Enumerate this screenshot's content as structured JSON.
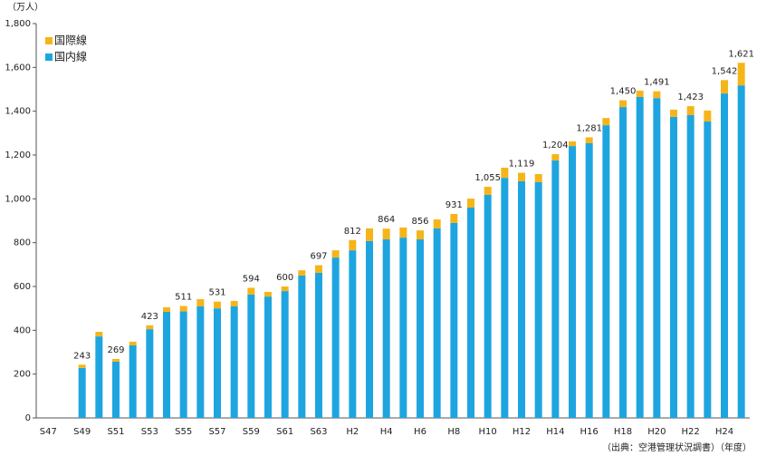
{
  "chart_data": {
    "type": "stacked_bar",
    "y_unit": "（万人）",
    "source": "（出典：空港管理状況調書）（年度）",
    "categories": [
      "S47",
      null,
      "S49",
      null,
      "S51",
      null,
      "S53",
      null,
      "S55",
      null,
      "S57",
      null,
      "S59",
      null,
      "S61",
      null,
      "S63",
      null,
      "H2",
      null,
      "H4",
      null,
      "H6",
      null,
      "H8",
      null,
      "H10",
      null,
      "H12",
      null,
      "H14",
      null,
      "H16",
      null,
      "H18",
      null,
      "H20",
      null,
      "H22",
      null,
      "H24",
      null
    ],
    "series": [
      {
        "name": "国内線",
        "color": "#1ea5e0",
        "values": [
          null,
          null,
          228,
          372,
          257,
          331,
          405,
          484,
          486,
          509,
          500,
          509,
          563,
          554,
          579,
          650,
          662,
          732,
          765,
          807,
          815,
          823,
          815,
          865,
          890,
          960,
          1018,
          1096,
          1080,
          1076,
          1175,
          1241,
          1254,
          1336,
          1419,
          1465,
          1460,
          1374,
          1382,
          1353,
          1481,
          1518
        ]
      },
      {
        "name": "国際線",
        "color": "#f5b51a",
        "values": [
          null,
          null,
          15,
          21,
          12,
          17,
          18,
          21,
          25,
          33,
          31,
          25,
          31,
          21,
          21,
          24,
          35,
          33,
          47,
          58,
          49,
          46,
          41,
          41,
          41,
          41,
          37,
          46,
          39,
          37,
          29,
          21,
          27,
          33,
          31,
          29,
          31,
          33,
          41,
          50,
          61,
          103
        ]
      }
    ],
    "totals": [
      null,
      null,
      243,
      null,
      269,
      null,
      423,
      null,
      511,
      null,
      531,
      null,
      594,
      null,
      600,
      null,
      697,
      null,
      812,
      null,
      864,
      null,
      856,
      null,
      931,
      null,
      1055,
      null,
      1119,
      null,
      1204,
      null,
      1281,
      null,
      1450,
      null,
      1491,
      null,
      1423,
      null,
      1542,
      1621
    ],
    "value_labels": [
      null,
      null,
      "243",
      null,
      "269",
      null,
      "423",
      null,
      "511",
      null,
      "531",
      null,
      "594",
      null,
      "600",
      null,
      "697",
      null,
      "812",
      null,
      "864",
      null,
      "856",
      null,
      "931",
      null,
      "1,055",
      null,
      "1,119",
      null,
      "1,204",
      null,
      "1,281",
      null,
      "1,450",
      null,
      "1,491",
      null,
      "1,423",
      null,
      "1,542",
      "1,621"
    ],
    "ylim": [
      0,
      1800
    ],
    "yticks": [
      0,
      200,
      400,
      600,
      800,
      {
        "value": 1000,
        "label": "1,000"
      },
      {
        "value": 1200,
        "label": "1,200"
      },
      {
        "value": 1400,
        "label": "1,400"
      },
      {
        "value": 1600,
        "label": "1,600"
      },
      {
        "value": 1800,
        "label": "1,800"
      }
    ],
    "grid": false,
    "legend": "upper left"
  }
}
